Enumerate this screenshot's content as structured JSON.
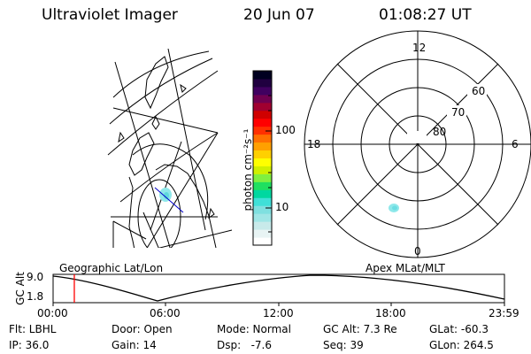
{
  "header": {
    "instrument": "Ultraviolet Imager",
    "date": "20 Jun 07",
    "time": "01:08:27 UT"
  },
  "colorbar": {
    "unit_label": "photon cm⁻²s⁻¹",
    "ticks": [
      "100",
      "10"
    ],
    "colors": [
      "#ffffff",
      "#e8f4f4",
      "#c8eaea",
      "#a0e6e6",
      "#7fe0e0",
      "#40e0d8",
      "#00d8a0",
      "#20e060",
      "#80f040",
      "#d0f000",
      "#ffff00",
      "#ffd000",
      "#ffa000",
      "#ff7000",
      "#ff3000",
      "#ff0000",
      "#d00000",
      "#a00030",
      "#700050",
      "#400060",
      "#200040",
      "#000020"
    ]
  },
  "geo_map": {
    "label": "Geographic Lat/Lon"
  },
  "polar_plot": {
    "label": "Apex MLat/MLT",
    "mlt_labels": {
      "top": "12",
      "left": "18",
      "right": "6",
      "bottom": "0"
    },
    "lat_labels": [
      "60",
      "70",
      "80"
    ]
  },
  "altitude_plot": {
    "ylabel": "GC Alt",
    "yticks": [
      "9.0",
      "1.8"
    ],
    "xticks": [
      "00:00",
      "06:00",
      "12:00",
      "18:00",
      "23:59"
    ],
    "current_time_fraction": 0.047,
    "marker_color": "#ff0000"
  },
  "info": {
    "row1": [
      "Flt: LBHL",
      "Door: Open",
      "Mode: Normal",
      "GC Alt: 7.3 Re",
      "GLat: -60.3"
    ],
    "row2": [
      "IP: 36.0",
      "Gain: 14",
      "Dsp:   -7.6",
      "Seq: 39",
      "GLon: 264.5"
    ]
  }
}
